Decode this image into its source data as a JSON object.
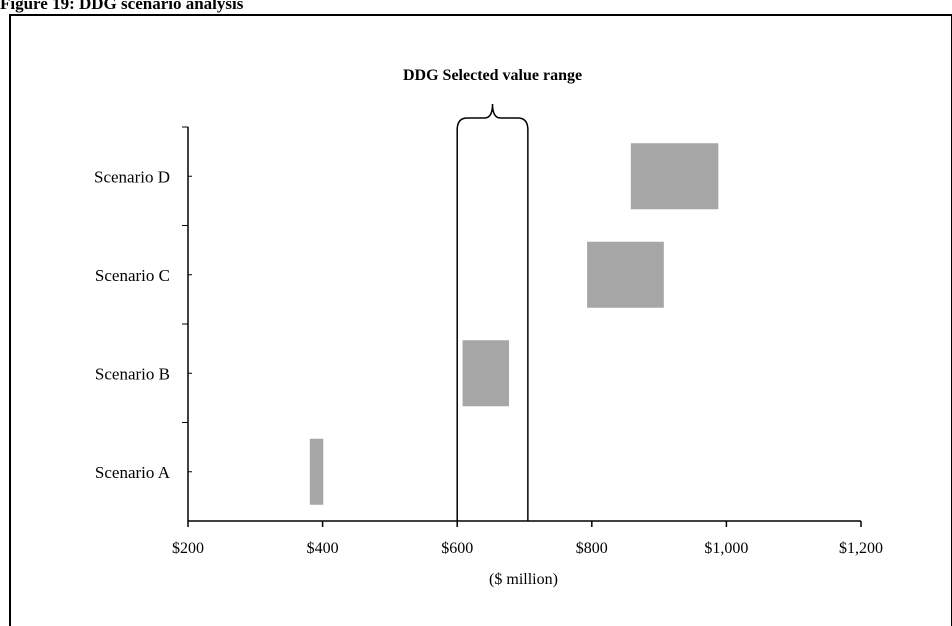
{
  "figure_title": "Figure 19: DDG scenario analysis",
  "chart_data": {
    "type": "bar",
    "orientation": "horizontal-range",
    "categories": [
      "Scenario A",
      "Scenario B",
      "Scenario C",
      "Scenario D"
    ],
    "ranges": [
      {
        "category": "Scenario A",
        "low": 381,
        "high": 401
      },
      {
        "category": "Scenario B",
        "low": 608,
        "high": 677
      },
      {
        "category": "Scenario C",
        "low": 793,
        "high": 907
      },
      {
        "category": "Scenario D",
        "low": 858,
        "high": 988
      }
    ],
    "xlabel": "($ million)",
    "xlim": [
      200,
      1200
    ],
    "xticks": [
      200,
      400,
      600,
      800,
      1000,
      1200
    ],
    "xtick_labels": [
      "$200",
      "$400",
      "$600",
      "$800",
      "$1,000",
      "$1,200"
    ],
    "grid": false,
    "bar_color": "#a6a6a6",
    "selected_range": {
      "label": "DDG Selected value range",
      "low": 600,
      "high": 705
    }
  }
}
